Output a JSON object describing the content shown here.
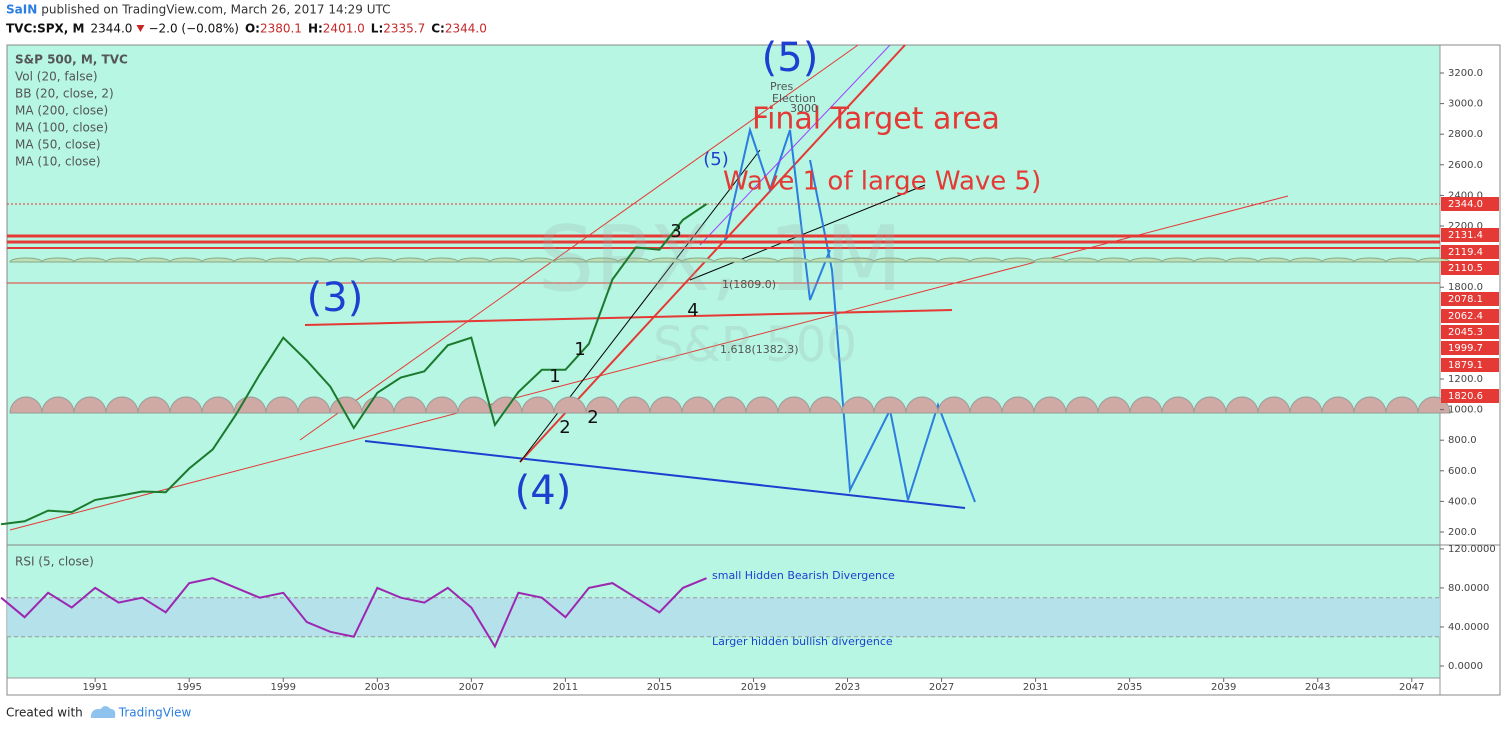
{
  "header": {
    "author": "SaIN",
    "published": "published on TradingView.com, March 26, 2017 14:29 UTC",
    "symbol": "TVC:SPX, M",
    "last": "2344.0",
    "change": "−2.0 (−0.08%)",
    "ohlc": [
      {
        "label": "O:",
        "value": "2380.1"
      },
      {
        "label": "H:",
        "value": "2401.0"
      },
      {
        "label": "L:",
        "value": "2335.7"
      },
      {
        "label": "C:",
        "value": "2344.0"
      }
    ]
  },
  "footer": {
    "created": "Created with",
    "brand": "TradingView"
  },
  "chart_data": [
    {
      "type": "line",
      "title": "S&P 500, M, TVC",
      "indicators": [
        "Vol (20, false)",
        "BB (20, close, 2)",
        "MA (200, close)",
        "MA (100, close)",
        "MA (50, close)",
        "MA (10, close)"
      ],
      "watermark": [
        "SPX, 1M",
        "S&P 500"
      ],
      "x": [
        1987,
        1988,
        1989,
        1990,
        1991,
        1992,
        1993,
        1994,
        1995,
        1996,
        1997,
        1998,
        1999,
        2000,
        2001,
        2002,
        2003,
        2004,
        2005,
        2006,
        2007,
        2008,
        2009,
        2010,
        2011,
        2012,
        2013,
        2014,
        2015,
        2016,
        2017
      ],
      "series": [
        {
          "name": "S&P 500",
          "color": "#1b7a2e",
          "values": [
            250,
            270,
            340,
            330,
            410,
            435,
            465,
            460,
            615,
            740,
            970,
            1230,
            1470,
            1320,
            1150,
            880,
            1110,
            1210,
            1250,
            1420,
            1470,
            900,
            1115,
            1260,
            1260,
            1430,
            1850,
            2060,
            2045,
            2240,
            2344
          ]
        }
      ],
      "xlim": [
        1987.25,
        2048.2
      ],
      "xticks": [
        1991,
        1995,
        1999,
        2003,
        2007,
        2011,
        2015,
        2019,
        2023,
        2027,
        2031,
        2035,
        2039,
        2043,
        2047
      ],
      "ylim": [
        115,
        3383
      ],
      "yticks": [
        {
          "value": 200,
          "label": "200.0"
        },
        {
          "value": 400,
          "label": "400.0"
        },
        {
          "value": 600,
          "label": "600.0"
        },
        {
          "value": 800,
          "label": "800.0"
        },
        {
          "value": 1000,
          "label": "1000.0"
        },
        {
          "value": 1200,
          "label": "1200.0"
        },
        {
          "value": 1800,
          "label": "1800.0"
        },
        {
          "value": 2200,
          "label": "2200.0"
        },
        {
          "value": 2400,
          "label": "2400.0"
        },
        {
          "value": 2600,
          "label": "2600.0"
        },
        {
          "value": 2800,
          "label": "2800.0"
        },
        {
          "value": 3000,
          "label": "3000.0"
        },
        {
          "value": 3200,
          "label": "3200.0"
        }
      ],
      "price_labels": [
        "2131.4",
        "2119.4",
        "2110.5",
        "2078.1",
        "2062.4",
        "2045.3",
        "1999.7",
        "1879.1",
        "1820.6"
      ],
      "annotations": [
        "(5)",
        "(3)",
        "(4)",
        "Final Target area",
        "Wave 1 of large Wave 5)",
        "Pres",
        "Election",
        "3000",
        "1",
        "1",
        "2",
        "2",
        "3",
        "4",
        "(5)",
        "1.618(1382.3)",
        "1(1809.0)"
      ]
    },
    {
      "type": "line",
      "title": "RSI (5, close)",
      "x": [
        1987,
        1988,
        1989,
        1990,
        1991,
        1992,
        1993,
        1994,
        1995,
        1996,
        1997,
        1998,
        1999,
        2000,
        2001,
        2002,
        2003,
        2004,
        2005,
        2006,
        2007,
        2008,
        2009,
        2010,
        2011,
        2012,
        2013,
        2014,
        2015,
        2016,
        2017
      ],
      "series": [
        {
          "name": "RSI",
          "color": "#9c27b0",
          "values": [
            70,
            50,
            75,
            60,
            80,
            65,
            70,
            55,
            85,
            90,
            80,
            70,
            75,
            45,
            35,
            30,
            80,
            70,
            65,
            80,
            60,
            20,
            75,
            70,
            50,
            80,
            85,
            70,
            55,
            80,
            90
          ]
        }
      ],
      "band": [
        30,
        70
      ],
      "ylim": [
        -12.3,
        124
      ],
      "yticks": [
        {
          "value": 0,
          "label": "0.0000"
        },
        {
          "value": 40,
          "label": "40.0000"
        },
        {
          "value": 80,
          "label": "80.0000"
        },
        {
          "value": 120,
          "label": "120.0000"
        }
      ],
      "annotations": [
        "small Hidden Bearish Divergence",
        "Larger hidden bullish divergence"
      ]
    }
  ]
}
